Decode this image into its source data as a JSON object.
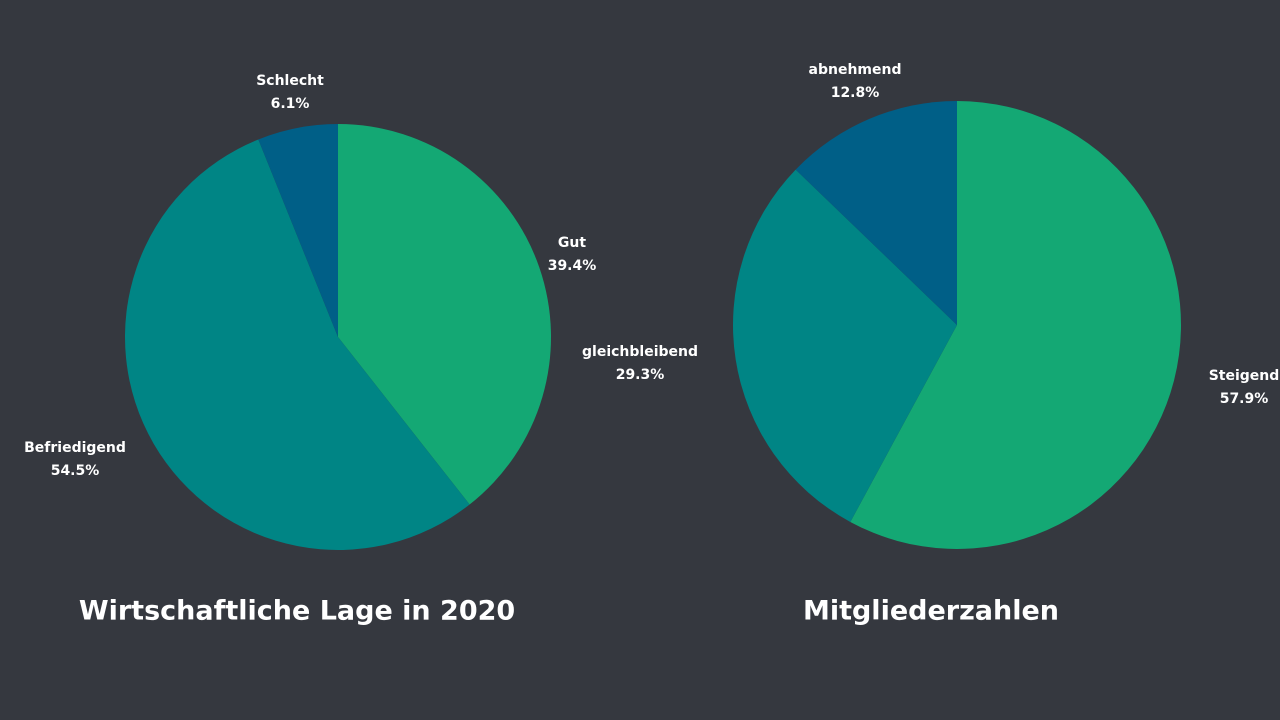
{
  "chart_data": [
    {
      "type": "pie",
      "title": "Wirtschaftliche Lage in 2020",
      "categories": [
        "Gut",
        "Befriedigend",
        "Schlecht"
      ],
      "values": [
        39.4,
        54.5,
        6.1
      ],
      "value_labels": [
        "39.4%",
        "54.5%",
        "6.1%"
      ],
      "colors": [
        "#14a874",
        "#008585",
        "#005f87"
      ]
    },
    {
      "type": "pie",
      "title": "Mitgliederzahlen",
      "categories": [
        "Steigend",
        "gleichbleibend",
        "abnehmend"
      ],
      "values": [
        57.9,
        29.3,
        12.8
      ],
      "value_labels": [
        "57.9%",
        "29.3%",
        "12.8%"
      ],
      "colors": [
        "#14a874",
        "#008585",
        "#005f87"
      ]
    }
  ]
}
